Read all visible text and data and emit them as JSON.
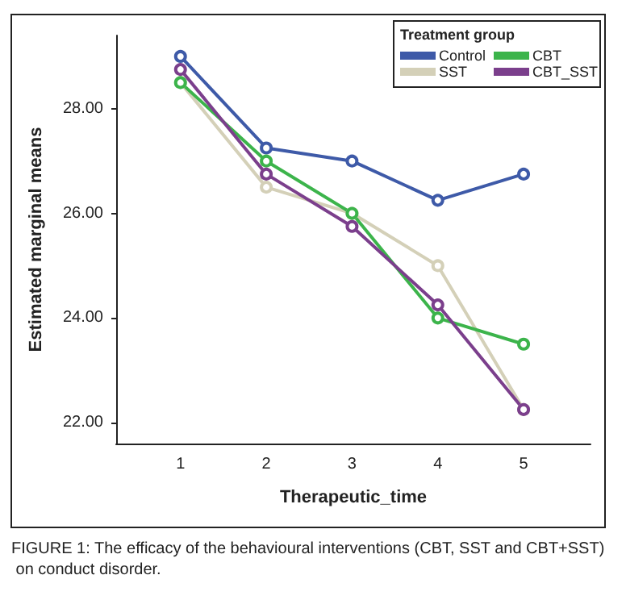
{
  "chart_data": {
    "type": "line",
    "xlabel": "Therapeutic_time",
    "ylabel": "Estimated marginal means",
    "legend_title": "Treatment group",
    "x": [
      1,
      2,
      3,
      4,
      5
    ],
    "xlim": [
      0.25,
      5.78
    ],
    "xticks": [
      1,
      2,
      3,
      4,
      5
    ],
    "ylim": [
      21.6,
      29.4
    ],
    "yticks": [
      {
        "value": 22,
        "label": "22.00"
      },
      {
        "value": 24,
        "label": "24.00"
      },
      {
        "value": 26,
        "label": "26.00"
      },
      {
        "value": 28,
        "label": "28.00"
      }
    ],
    "series": [
      {
        "name": "Control",
        "color": "#3e5aa8",
        "values": [
          29.0,
          27.25,
          27.0,
          26.25,
          26.75
        ]
      },
      {
        "name": "SST",
        "color": "#d4d0b8",
        "values": [
          28.5,
          26.5,
          26.0,
          25.0,
          22.25
        ]
      },
      {
        "name": "CBT",
        "color": "#3cb44b",
        "values": [
          28.5,
          27.0,
          26.0,
          24.0,
          23.5
        ]
      },
      {
        "name": "CBT_SST",
        "color": "#7b3f8c",
        "values": [
          28.75,
          26.75,
          25.75,
          24.25,
          22.25
        ]
      }
    ],
    "marker": "circle",
    "grid": false,
    "legend": "top right",
    "annotations": [
      "FIGURE 1: The efficacy of the behavioural interventions (CBT, SST and CBT+SST) on conduct disorder."
    ]
  }
}
